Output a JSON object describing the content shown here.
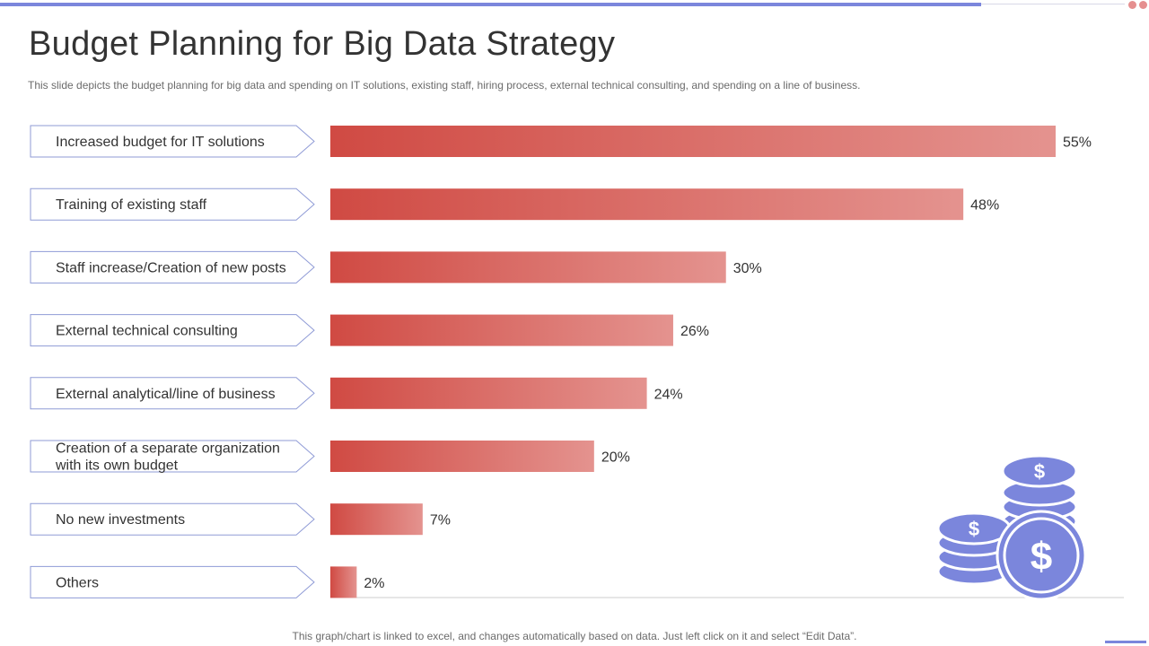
{
  "header": {
    "title": "Budget Planning for Big Data Strategy",
    "subtitle": "This slide depicts the budget planning for big data and spending on IT solutions, existing staff, hiring process, external technical consulting, and spending on a line of business."
  },
  "footer": {
    "note": "This graph/chart is linked to excel,  and changes automatically based on data. Just left click on it and select “Edit Data”."
  },
  "colors": {
    "bar_dark": "#d04a43",
    "bar_light": "#e4938f",
    "label_border": "#8f9bd6",
    "accent": "#7b86dc",
    "coin": "#7b86dc"
  },
  "icons": {
    "coins": "dollar-coins-icon"
  },
  "chart_data": {
    "type": "bar",
    "orientation": "horizontal",
    "categories": [
      "Increased budget for IT solutions",
      "Training of existing staff",
      "Staff increase/Creation of new posts",
      "External technical consulting",
      "External analytical/line  of business",
      "Creation of a separate organization with its own budget",
      "No new investments",
      "Others"
    ],
    "values": [
      55,
      48,
      30,
      26,
      24,
      20,
      7,
      2
    ],
    "value_suffix": "%",
    "xlim": [
      0,
      55
    ],
    "title": "",
    "xlabel": "",
    "ylabel": "",
    "grid": false,
    "legend": false
  }
}
